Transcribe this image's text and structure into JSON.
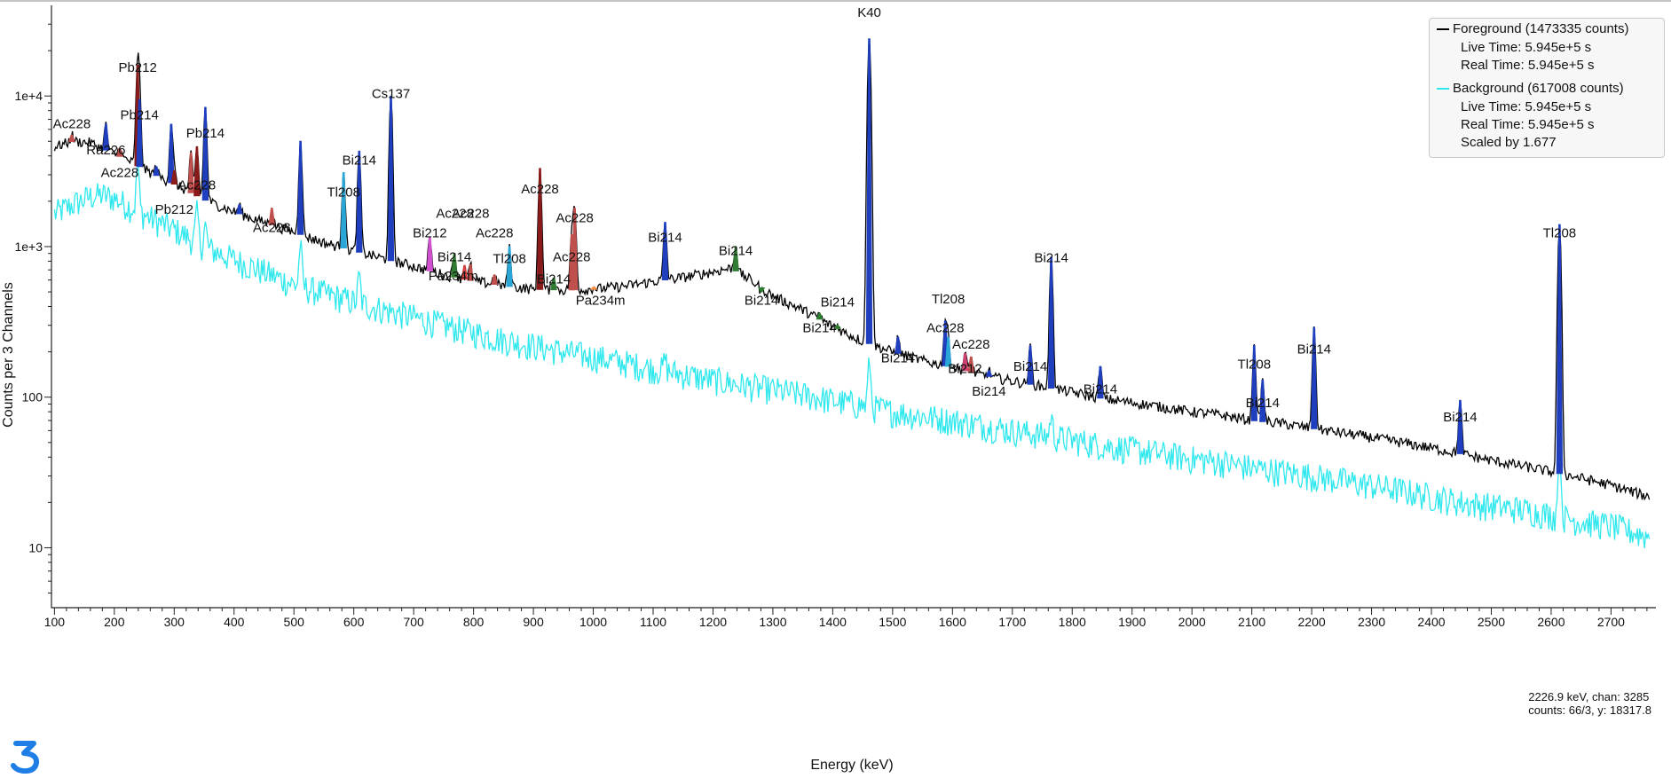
{
  "chart_data": {
    "type": "line",
    "xlabel": "Energy (keV)",
    "ylabel": "Counts per 3 Channels",
    "xlim": [
      95,
      2775
    ],
    "ylim": [
      4,
      40000
    ],
    "yscale": "log",
    "x_ticks": [
      100,
      200,
      300,
      400,
      500,
      600,
      700,
      800,
      900,
      1000,
      1100,
      1200,
      1300,
      1400,
      1500,
      1600,
      1700,
      1800,
      1900,
      2000,
      2100,
      2200,
      2300,
      2400,
      2500,
      2600,
      2700
    ],
    "x_tick_labels": [
      "100",
      "200",
      "300",
      "400",
      "500",
      "600",
      "700",
      "800",
      "900",
      "1000",
      "1100",
      "1200",
      "1300",
      "1400",
      "1500",
      "1600",
      "1700",
      "1800",
      "1900",
      "2000",
      "2100",
      "2200",
      "2300",
      "2400",
      "2500",
      "2600",
      "2700"
    ],
    "y_ticks": [
      10,
      100,
      1000,
      10000
    ],
    "y_tick_labels": [
      "10",
      "100",
      "1e+3",
      "1e+4"
    ],
    "legend_position": "top-right",
    "series": [
      {
        "name": "Foreground (1473335 counts)",
        "color": "#000000",
        "baseline": [
          [
            100,
            4600
          ],
          [
            130,
            5000
          ],
          [
            160,
            4900
          ],
          [
            190,
            4300
          ],
          [
            220,
            3800
          ],
          [
            260,
            3100
          ],
          [
            300,
            2600
          ],
          [
            350,
            2050
          ],
          [
            400,
            1700
          ],
          [
            450,
            1450
          ],
          [
            500,
            1250
          ],
          [
            550,
            1060
          ],
          [
            600,
            940
          ],
          [
            650,
            830
          ],
          [
            700,
            740
          ],
          [
            750,
            650
          ],
          [
            800,
            590
          ],
          [
            850,
            550
          ],
          [
            900,
            520
          ],
          [
            950,
            515
          ],
          [
            1000,
            520
          ],
          [
            1050,
            545
          ],
          [
            1100,
            585
          ],
          [
            1150,
            625
          ],
          [
            1200,
            680
          ],
          [
            1230,
            720
          ],
          [
            1260,
            610
          ],
          [
            1300,
            470
          ],
          [
            1350,
            380
          ],
          [
            1400,
            295
          ],
          [
            1450,
            235
          ],
          [
            1500,
            200
          ],
          [
            1550,
            175
          ],
          [
            1600,
            158
          ],
          [
            1650,
            140
          ],
          [
            1700,
            128
          ],
          [
            1750,
            118
          ],
          [
            1800,
            108
          ],
          [
            1850,
            98
          ],
          [
            1900,
            92
          ],
          [
            1950,
            86
          ],
          [
            2000,
            80
          ],
          [
            2050,
            76
          ],
          [
            2100,
            70
          ],
          [
            2150,
            67
          ],
          [
            2200,
            62
          ],
          [
            2250,
            58
          ],
          [
            2300,
            54
          ],
          [
            2350,
            50
          ],
          [
            2400,
            46
          ],
          [
            2450,
            42
          ],
          [
            2500,
            38
          ],
          [
            2550,
            35
          ],
          [
            2600,
            32
          ],
          [
            2650,
            29
          ],
          [
            2700,
            26
          ],
          [
            2760,
            22
          ]
        ],
        "peaks": [
          {
            "e": 129,
            "h": 5500,
            "color": "#c0504d"
          },
          {
            "e": 186,
            "h": 6500,
            "color": "#1f3fbf"
          },
          {
            "e": 209,
            "h": 4500,
            "color": "#c0504d"
          },
          {
            "e": 239,
            "h": 16000,
            "color": "#8b1a1a"
          },
          {
            "e": 242,
            "h": 9500,
            "color": "#1f3fbf"
          },
          {
            "e": 270,
            "h": 3400,
            "color": "#1f3fbf"
          },
          {
            "e": 295,
            "h": 6500,
            "color": "#1f3fbf"
          },
          {
            "e": 300,
            "h": 3200,
            "color": "#8b1a1a"
          },
          {
            "e": 328,
            "h": 4200,
            "color": "#c0504d"
          },
          {
            "e": 338,
            "h": 4600,
            "color": "#8b1a1a"
          },
          {
            "e": 352,
            "h": 8400,
            "color": "#1f3fbf"
          },
          {
            "e": 409,
            "h": 1900,
            "color": "#1f3fbf"
          },
          {
            "e": 463,
            "h": 1800,
            "color": "#c0504d"
          },
          {
            "e": 511,
            "h": 5000,
            "color": "#1f3fbf"
          },
          {
            "e": 583,
            "h": 3100,
            "color": "#2aa6d6"
          },
          {
            "e": 609,
            "h": 4300,
            "color": "#1f3fbf"
          },
          {
            "e": 662,
            "h": 10000,
            "color": "#1f3fbf"
          },
          {
            "e": 727,
            "h": 1150,
            "color": "#d050d0"
          },
          {
            "e": 768,
            "h": 900,
            "color": "#2e7d32"
          },
          {
            "e": 785,
            "h": 750,
            "color": "#d04040"
          },
          {
            "e": 795,
            "h": 760,
            "color": "#c0504d"
          },
          {
            "e": 835,
            "h": 650,
            "color": "#c0504d"
          },
          {
            "e": 860,
            "h": 1000,
            "color": "#2aa6d6"
          },
          {
            "e": 911,
            "h": 3300,
            "color": "#8b1a1a"
          },
          {
            "e": 934,
            "h": 620,
            "color": "#2e7d32"
          },
          {
            "e": 964,
            "h": 1200,
            "color": "#c0504d"
          },
          {
            "e": 969,
            "h": 1800,
            "color": "#c0504d"
          },
          {
            "e": 1001,
            "h": 540,
            "color": "#ff8c40"
          },
          {
            "e": 1120,
            "h": 1450,
            "color": "#1f3fbf"
          },
          {
            "e": 1238,
            "h": 1000,
            "color": "#2e7d32"
          },
          {
            "e": 1281,
            "h": 500,
            "color": "#2e7d32"
          },
          {
            "e": 1378,
            "h": 360,
            "color": "#2e7d32"
          },
          {
            "e": 1408,
            "h": 300,
            "color": "#2e7d32"
          },
          {
            "e": 1461,
            "h": 24000,
            "color": "#1f3fbf"
          },
          {
            "e": 1509,
            "h": 250,
            "color": "#1f3fbf"
          },
          {
            "e": 1588,
            "h": 320,
            "color": "#1f3fbf"
          },
          {
            "e": 1593,
            "h": 250,
            "color": "#2aa6d6"
          },
          {
            "e": 1621,
            "h": 195,
            "color": "#d04070"
          },
          {
            "e": 1631,
            "h": 185,
            "color": "#c0504d"
          },
          {
            "e": 1661,
            "h": 150,
            "color": "#1f3fbf"
          },
          {
            "e": 1730,
            "h": 220,
            "color": "#1f3fbf"
          },
          {
            "e": 1765,
            "h": 850,
            "color": "#1f3fbf"
          },
          {
            "e": 1847,
            "h": 160,
            "color": "#1f3fbf"
          },
          {
            "e": 2104,
            "h": 220,
            "color": "#1f3fbf"
          },
          {
            "e": 2118,
            "h": 130,
            "color": "#1f3fbf"
          },
          {
            "e": 2204,
            "h": 290,
            "color": "#1f3fbf"
          },
          {
            "e": 2448,
            "h": 95,
            "color": "#1f3fbf"
          },
          {
            "e": 2614,
            "h": 1400,
            "color": "#1f3fbf"
          }
        ]
      },
      {
        "name": "Background (617008 counts)",
        "color": "#2ee8ee",
        "baseline": [
          [
            100,
            1650
          ],
          [
            130,
            1900
          ],
          [
            160,
            2150
          ],
          [
            180,
            2200
          ],
          [
            200,
            2100
          ],
          [
            230,
            1800
          ],
          [
            260,
            1550
          ],
          [
            300,
            1300
          ],
          [
            350,
            1000
          ],
          [
            400,
            820
          ],
          [
            450,
            680
          ],
          [
            500,
            560
          ],
          [
            550,
            490
          ],
          [
            600,
            430
          ],
          [
            650,
            380
          ],
          [
            700,
            340
          ],
          [
            750,
            300
          ],
          [
            800,
            270
          ],
          [
            850,
            240
          ],
          [
            900,
            220
          ],
          [
            950,
            200
          ],
          [
            1000,
            185
          ],
          [
            1050,
            170
          ],
          [
            1100,
            155
          ],
          [
            1150,
            142
          ],
          [
            1200,
            130
          ],
          [
            1250,
            120
          ],
          [
            1300,
            112
          ],
          [
            1350,
            104
          ],
          [
            1400,
            95
          ],
          [
            1450,
            88
          ],
          [
            1500,
            80
          ],
          [
            1550,
            75
          ],
          [
            1600,
            70
          ],
          [
            1650,
            65
          ],
          [
            1700,
            60
          ],
          [
            1750,
            56
          ],
          [
            1800,
            52
          ],
          [
            1850,
            48
          ],
          [
            1900,
            45
          ],
          [
            1950,
            42
          ],
          [
            2000,
            39
          ],
          [
            2050,
            37
          ],
          [
            2100,
            34
          ],
          [
            2150,
            32
          ],
          [
            2200,
            30
          ],
          [
            2250,
            28
          ],
          [
            2300,
            26
          ],
          [
            2350,
            24
          ],
          [
            2400,
            22
          ],
          [
            2450,
            20
          ],
          [
            2500,
            19
          ],
          [
            2550,
            18
          ],
          [
            2600,
            16.5
          ],
          [
            2650,
            15
          ],
          [
            2700,
            14
          ],
          [
            2760,
            12
          ]
        ],
        "peaks": [
          {
            "e": 239,
            "h": 3500
          },
          {
            "e": 338,
            "h": 1800
          },
          {
            "e": 352,
            "h": 1400
          },
          {
            "e": 511,
            "h": 1050
          },
          {
            "e": 609,
            "h": 650
          },
          {
            "e": 1120,
            "h": 180
          },
          {
            "e": 1461,
            "h": 175
          },
          {
            "e": 1765,
            "h": 75
          },
          {
            "e": 2614,
            "h": 45
          }
        ]
      }
    ],
    "peak_labels": [
      {
        "text": "Ac228",
        "x": 129,
        "y": 6100
      },
      {
        "text": "Pb212",
        "x": 239,
        "y": 14500
      },
      {
        "text": "Pb214",
        "x": 242,
        "y": 7000
      },
      {
        "text": "Ra226",
        "x": 186,
        "y": 4100
      },
      {
        "text": "Ac228",
        "x": 209,
        "y": 2900
      },
      {
        "text": "Pb214",
        "x": 352,
        "y": 5300
      },
      {
        "text": "Ac228",
        "x": 338,
        "y": 2400
      },
      {
        "text": "Pb212",
        "x": 300,
        "y": 1650
      },
      {
        "text": "Cs137",
        "x": 662,
        "y": 9700
      },
      {
        "text": "Bi214",
        "x": 609,
        "y": 3500
      },
      {
        "text": "Tl208",
        "x": 583,
        "y": 2150
      },
      {
        "text": "Ac228",
        "x": 463,
        "y": 1250
      },
      {
        "text": "Ac228",
        "x": 911,
        "y": 2250
      },
      {
        "text": "Ac228",
        "x": 769,
        "y": 1550
      },
      {
        "text": "Ac228",
        "x": 795,
        "y": 1550
      },
      {
        "text": "Ac228",
        "x": 835,
        "y": 1150
      },
      {
        "text": "Ac228",
        "x": 969,
        "y": 1450
      },
      {
        "text": "Bi212",
        "x": 727,
        "y": 1150
      },
      {
        "text": "Bi214",
        "x": 768,
        "y": 800
      },
      {
        "text": "Pa234m",
        "x": 766,
        "y": 595
      },
      {
        "text": "Tl208",
        "x": 860,
        "y": 780
      },
      {
        "text": "Ac228",
        "x": 964,
        "y": 800
      },
      {
        "text": "Bi214",
        "x": 934,
        "y": 570
      },
      {
        "text": "Pa234m",
        "x": 1012,
        "y": 410
      },
      {
        "text": "Bi214",
        "x": 1120,
        "y": 1080
      },
      {
        "text": "Bi214",
        "x": 1238,
        "y": 880
      },
      {
        "text": "Bi214",
        "x": 1281,
        "y": 410
      },
      {
        "text": "Bi214",
        "x": 1378,
        "y": 270
      },
      {
        "text": "Bi214",
        "x": 1408,
        "y": 400
      },
      {
        "text": "K40",
        "x": 1461,
        "y": 33500
      },
      {
        "text": "Bi214",
        "x": 1509,
        "y": 170
      },
      {
        "text": "Tl208",
        "x": 1593,
        "y": 420
      },
      {
        "text": "Ac228",
        "x": 1588,
        "y": 270
      },
      {
        "text": "Ac228",
        "x": 1631,
        "y": 210
      },
      {
        "text": "Bi212",
        "x": 1621,
        "y": 145
      },
      {
        "text": "Bi214",
        "x": 1661,
        "y": 102
      },
      {
        "text": "Bi214",
        "x": 1730,
        "y": 150
      },
      {
        "text": "Bi214",
        "x": 1765,
        "y": 790
      },
      {
        "text": "Bi214",
        "x": 1847,
        "y": 106
      },
      {
        "text": "Tl208",
        "x": 2104,
        "y": 155
      },
      {
        "text": "Bi214",
        "x": 2118,
        "y": 86
      },
      {
        "text": "Bi214",
        "x": 2204,
        "y": 195
      },
      {
        "text": "Bi214",
        "x": 2448,
        "y": 69
      },
      {
        "text": "Tl208",
        "x": 2614,
        "y": 1150
      }
    ]
  },
  "legend": {
    "foreground_label": "Foreground (1473335 counts)",
    "foreground_live": "Live Time: 5.945e+5 s",
    "foreground_real": "Real Time: 5.945e+5 s",
    "background_label": "Background (617008 counts)",
    "background_live": "Live Time: 5.945e+5 s",
    "background_real": "Real Time: 5.945e+5 s",
    "background_scale": "Scaled by 1.677",
    "foreground_color": "#000000",
    "background_color": "#2ee8ee"
  },
  "readout": {
    "line1": "2226.9 keV, chan: 3285",
    "line2": "counts: 66/3, y: 18317.8"
  }
}
